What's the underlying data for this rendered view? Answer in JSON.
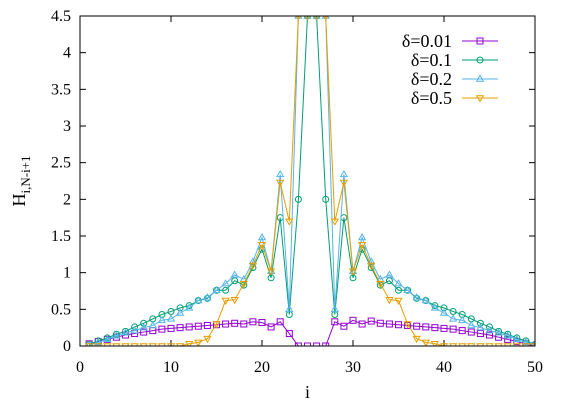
{
  "chart_data": {
    "type": "line",
    "xlabel": "i",
    "ylabel_main": "H",
    "ylabel_sub": "i,N-i+1",
    "xlim": [
      0,
      50
    ],
    "ylim": [
      0,
      4.5
    ],
    "xticks": [
      0,
      10,
      20,
      30,
      40,
      50
    ],
    "yticks": [
      0,
      0.5,
      1,
      1.5,
      2,
      2.5,
      3,
      3.5,
      4,
      4.5
    ],
    "x": [
      1,
      2,
      3,
      4,
      5,
      6,
      7,
      8,
      9,
      10,
      11,
      12,
      13,
      14,
      15,
      16,
      17,
      18,
      19,
      20,
      21,
      22,
      23,
      24,
      25,
      26,
      27,
      28,
      29,
      30,
      31,
      32,
      33,
      34,
      35,
      36,
      37,
      38,
      39,
      40,
      41,
      42,
      43,
      44,
      45,
      46,
      47,
      48,
      49,
      50
    ],
    "legend_position": "top-right",
    "series": [
      {
        "name": "δ=0.01",
        "color": "#9400d3",
        "marker": "square",
        "values": [
          0.03,
          0.06,
          0.09,
          0.12,
          0.15,
          0.17,
          0.19,
          0.21,
          0.23,
          0.24,
          0.25,
          0.26,
          0.27,
          0.28,
          0.29,
          0.3,
          0.31,
          0.3,
          0.33,
          0.32,
          0.26,
          0.33,
          0.17,
          0.0,
          0.0,
          0.0,
          0.0,
          0.33,
          0.27,
          0.35,
          0.3,
          0.34,
          0.31,
          0.3,
          0.29,
          0.28,
          0.27,
          0.26,
          0.25,
          0.24,
          0.23,
          0.21,
          0.19,
          0.17,
          0.15,
          0.12,
          0.09,
          0.06,
          0.03,
          0.0
        ]
      },
      {
        "name": "δ=0.1",
        "color": "#009e73",
        "marker": "circle",
        "values": [
          0.02,
          0.07,
          0.11,
          0.16,
          0.2,
          0.26,
          0.31,
          0.37,
          0.43,
          0.47,
          0.52,
          0.55,
          0.62,
          0.65,
          0.76,
          0.76,
          0.89,
          0.83,
          1.07,
          1.32,
          0.93,
          1.75,
          0.43,
          2.0,
          4.5,
          4.5,
          2.0,
          0.43,
          1.75,
          0.93,
          1.32,
          1.07,
          0.83,
          0.89,
          0.76,
          0.76,
          0.65,
          0.62,
          0.55,
          0.52,
          0.47,
          0.43,
          0.37,
          0.31,
          0.26,
          0.2,
          0.16,
          0.11,
          0.07,
          0.02
        ]
      },
      {
        "name": "δ=0.2",
        "color": "#56b4e9",
        "marker": "triangle-up",
        "values": [
          0.01,
          0.05,
          0.09,
          0.14,
          0.18,
          0.21,
          0.25,
          0.28,
          0.35,
          0.37,
          0.45,
          0.52,
          0.62,
          0.66,
          0.76,
          0.85,
          0.97,
          0.91,
          1.15,
          1.48,
          1.02,
          2.34,
          0.5,
          4.5,
          4.5,
          4.5,
          4.5,
          0.5,
          2.34,
          1.02,
          1.48,
          1.15,
          0.91,
          0.97,
          0.85,
          0.76,
          0.66,
          0.62,
          0.52,
          0.45,
          0.37,
          0.35,
          0.28,
          0.25,
          0.21,
          0.18,
          0.14,
          0.09,
          0.05,
          0.01
        ]
      },
      {
        "name": "δ=0.5",
        "color": "#e69f00",
        "marker": "triangle-down",
        "values": [
          0.0,
          0.0,
          0.0,
          0.0,
          0.0,
          0.0,
          0.0,
          0.0,
          0.0,
          0.0,
          0.0,
          0.03,
          0.05,
          0.1,
          0.3,
          0.62,
          0.63,
          0.85,
          1.1,
          1.38,
          1.02,
          2.23,
          1.7,
          4.5,
          4.5,
          4.5,
          4.5,
          1.7,
          2.23,
          1.02,
          1.38,
          1.1,
          0.85,
          0.63,
          0.62,
          0.3,
          0.1,
          0.05,
          0.03,
          0.0,
          0.0,
          0.0,
          0.0,
          0.0,
          0.0,
          0.0,
          0.0,
          0.0,
          0.0,
          0.0
        ]
      }
    ]
  }
}
